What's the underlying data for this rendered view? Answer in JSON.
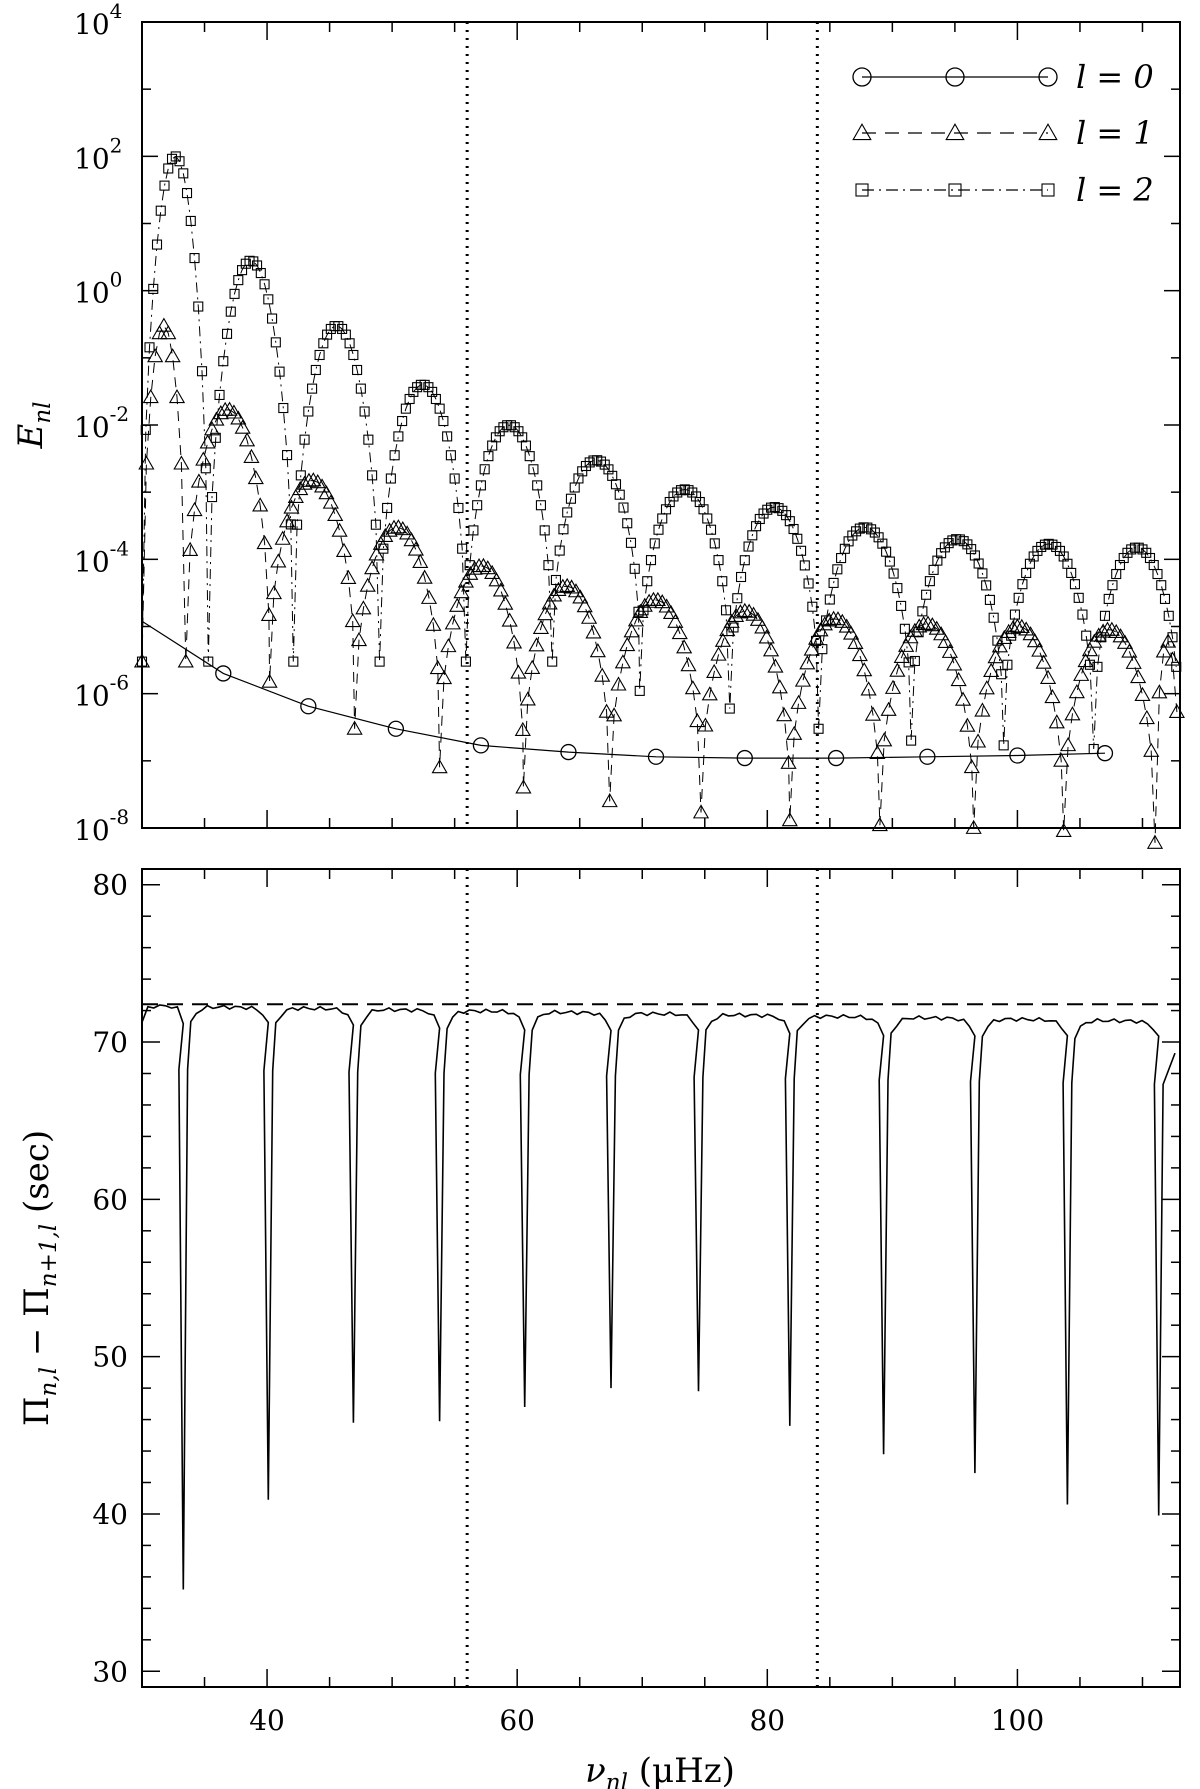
{
  "chart_data": [
    {
      "type": "scatter",
      "yscale": "log",
      "xlim": [
        30,
        113
      ],
      "ylim": [
        1e-08,
        10000.0
      ],
      "ylabel": "E_nl",
      "ytick_labels": [
        {
          "value": 1e-08,
          "base": "10",
          "exp": "-8"
        },
        {
          "value": 1e-06,
          "base": "10",
          "exp": "-6"
        },
        {
          "value": 0.0001,
          "base": "10",
          "exp": "-4"
        },
        {
          "value": 0.01,
          "base": "10",
          "exp": "-2"
        },
        {
          "value": 1.0,
          "base": "10",
          "exp": "0"
        },
        {
          "value": 100.0,
          "base": "10",
          "exp": "2"
        },
        {
          "value": 10000.0,
          "base": "10",
          "exp": "4"
        }
      ],
      "legend_position": "top-right",
      "vlines": [
        56,
        84
      ],
      "series": [
        {
          "name": "l = 0",
          "marker": "circle",
          "line": "solid",
          "points": [
            [
              30,
              1.2e-05
            ],
            [
              36.5,
              2e-06
            ],
            [
              43.3,
              6.5e-07
            ],
            [
              50.3,
              3e-07
            ],
            [
              57.1,
              1.7e-07
            ],
            [
              64.1,
              1.35e-07
            ],
            [
              71.1,
              1.15e-07
            ],
            [
              78.2,
              1.1e-07
            ],
            [
              85.5,
              1.1e-07
            ],
            [
              92.8,
              1.15e-07
            ],
            [
              100,
              1.2e-07
            ],
            [
              107,
              1.3e-07
            ]
          ]
        },
        {
          "name": "l = 1",
          "marker": "triangle",
          "line": "dashed",
          "arches": [
            {
              "start": 30,
              "end": 33.5,
              "peak": 0.3
            },
            {
              "start": 33.5,
              "end": 40.2,
              "peak": 0.017
            },
            {
              "start": 40.2,
              "end": 47,
              "peak": 0.0015
            },
            {
              "start": 47,
              "end": 53.8,
              "peak": 0.0003
            },
            {
              "start": 53.8,
              "end": 60.5,
              "peak": 8e-05
            },
            {
              "start": 60.5,
              "end": 67.4,
              "peak": 4e-05
            },
            {
              "start": 67.4,
              "end": 74.7,
              "peak": 2.5e-05
            },
            {
              "start": 74.7,
              "end": 81.8,
              "peak": 1.7e-05
            },
            {
              "start": 81.8,
              "end": 89,
              "peak": 1.3e-05
            },
            {
              "start": 89,
              "end": 96.5,
              "peak": 1.1e-05
            },
            {
              "start": 96.5,
              "end": 103.7,
              "peak": 1e-05
            },
            {
              "start": 103.7,
              "end": 111,
              "peak": 9e-06
            },
            {
              "start": 111,
              "end": 113,
              "peak": 6e-06
            }
          ]
        },
        {
          "name": "l = 2",
          "marker": "square",
          "line": "dashdot",
          "arches": [
            {
              "start": 30,
              "end": 35.3,
              "peak": 100
            },
            {
              "start": 35.3,
              "end": 42.1,
              "peak": 2.8
            },
            {
              "start": 42.1,
              "end": 49,
              "peak": 0.3
            },
            {
              "start": 49,
              "end": 55.9,
              "peak": 0.04
            },
            {
              "start": 55.9,
              "end": 62.8,
              "peak": 0.01
            },
            {
              "start": 62.8,
              "end": 69.8,
              "peak": 0.003
            },
            {
              "start": 69.8,
              "end": 77,
              "peak": 0.0011
            },
            {
              "start": 77,
              "end": 84.1,
              "peak": 0.0006
            },
            {
              "start": 84.1,
              "end": 91.5,
              "peak": 0.0003
            },
            {
              "start": 91.5,
              "end": 98.9,
              "peak": 0.0002
            },
            {
              "start": 98.9,
              "end": 106.1,
              "peak": 0.00017
            },
            {
              "start": 106.1,
              "end": 113,
              "peak": 0.00015
            }
          ]
        }
      ]
    },
    {
      "type": "line",
      "xlim": [
        30,
        113
      ],
      "ylim": [
        29,
        81
      ],
      "xticks": [
        40,
        60,
        80,
        100
      ],
      "yticks": [
        30,
        40,
        50,
        60,
        70,
        80
      ],
      "xlabel": "ν_nl (μHz)",
      "ylabel": "Π_{n,l} − Π_{n+1,l} (sec)",
      "hline": 72.4,
      "vlines": [
        56,
        84
      ],
      "baseline": {
        "start": [
          30,
          72.3
        ],
        "end": [
          112,
          71.3
        ]
      },
      "dips": [
        {
          "x": 33.3,
          "min": 35.2
        },
        {
          "x": 40.1,
          "min": 40.9
        },
        {
          "x": 46.9,
          "min": 45.8
        },
        {
          "x": 53.8,
          "min": 45.9
        },
        {
          "x": 60.6,
          "min": 46.8
        },
        {
          "x": 67.5,
          "min": 48
        },
        {
          "x": 74.5,
          "min": 47.8
        },
        {
          "x": 81.8,
          "min": 45.6
        },
        {
          "x": 89.3,
          "min": 43.8
        },
        {
          "x": 96.6,
          "min": 42.6
        },
        {
          "x": 104,
          "min": 40.6
        },
        {
          "x": 111.3,
          "min": 39.9
        }
      ],
      "end_point": [
        112.6,
        69.3
      ]
    }
  ]
}
